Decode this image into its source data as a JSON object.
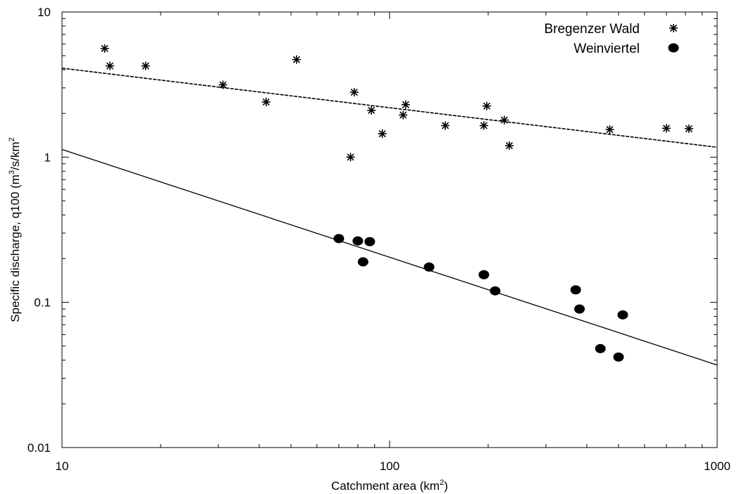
{
  "chart_data": {
    "type": "scatter",
    "xscale": "log",
    "yscale": "log",
    "xlim": [
      10,
      1000
    ],
    "ylim": [
      0.01,
      10
    ],
    "grid": false,
    "legend_placement": "top-right",
    "xlabel": {
      "text": "Catchment area (km",
      "sup": "2",
      "tail": ")"
    },
    "ylabel": {
      "text": "Specific discharge, q100 (m",
      "sup1": "3",
      "mid": "/s/km",
      "sup2": "2"
    },
    "x_ticks": [
      {
        "value": 10,
        "label": "10"
      },
      {
        "value": 100,
        "label": "100"
      },
      {
        "value": 1000,
        "label": "1000"
      }
    ],
    "y_ticks": [
      {
        "value": 0.01,
        "label": "0.01"
      },
      {
        "value": 0.1,
        "label": "0.1"
      },
      {
        "value": 1,
        "label": "1"
      },
      {
        "value": 10,
        "label": "10"
      }
    ],
    "series": [
      {
        "name": "Bregenzer Wald",
        "marker": "asterisk",
        "points": [
          [
            13.5,
            5.6
          ],
          [
            14,
            4.25
          ],
          [
            18,
            4.25
          ],
          [
            31,
            3.15
          ],
          [
            42,
            2.4
          ],
          [
            52,
            4.7
          ],
          [
            76,
            1.0
          ],
          [
            78,
            2.8
          ],
          [
            88,
            2.1
          ],
          [
            95,
            1.45
          ],
          [
            110,
            1.95
          ],
          [
            112,
            2.3
          ],
          [
            148,
            1.65
          ],
          [
            194,
            1.65
          ],
          [
            198,
            2.25
          ],
          [
            224,
            1.8
          ],
          [
            232,
            1.2
          ],
          [
            470,
            1.55
          ],
          [
            700,
            1.58
          ],
          [
            820,
            1.57
          ]
        ]
      },
      {
        "name": "Weinviertel",
        "marker": "dot",
        "points": [
          [
            70,
            0.275
          ],
          [
            80,
            0.265
          ],
          [
            83,
            0.19
          ],
          [
            87,
            0.262
          ],
          [
            132,
            0.175
          ],
          [
            194,
            0.155
          ],
          [
            210,
            0.12
          ],
          [
            370,
            0.122
          ],
          [
            380,
            0.09
          ],
          [
            440,
            0.048
          ],
          [
            500,
            0.042
          ],
          [
            515,
            0.082
          ]
        ]
      }
    ],
    "trendlines": [
      {
        "series": "Bregenzer Wald",
        "style": "dashed",
        "from": [
          10,
          4.1
        ],
        "to": [
          1000,
          1.17
        ]
      },
      {
        "series": "Weinviertel",
        "style": "solid",
        "from": [
          10,
          1.13
        ],
        "to": [
          1000,
          0.037
        ]
      }
    ]
  }
}
